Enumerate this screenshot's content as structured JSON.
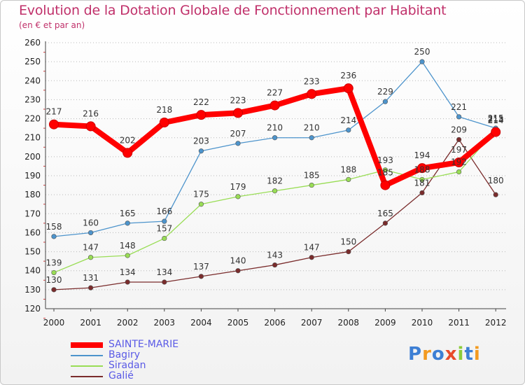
{
  "chart_data": {
    "type": "line",
    "title": "Evolution de la Dotation Globale de Fonctionnement par Habitant",
    "subtitle": "(en € et par an)",
    "xlabel": "",
    "ylabel": "",
    "categories": [
      "2000",
      "2001",
      "2002",
      "2003",
      "2004",
      "2005",
      "2006",
      "2007",
      "2008",
      "2009",
      "2010",
      "2011",
      "2012"
    ],
    "ylim": [
      120,
      260
    ],
    "yticks": [
      120,
      130,
      140,
      150,
      160,
      170,
      180,
      190,
      200,
      210,
      220,
      230,
      240,
      250,
      260
    ],
    "grid": "horizontal dotted",
    "legend_position": "bottom-left",
    "series": [
      {
        "name": "SAINTE-MARIE",
        "color": "#ff0000",
        "values": [
          217,
          216,
          202,
          218,
          222,
          223,
          227,
          233,
          236,
          185,
          194,
          197,
          213
        ]
      },
      {
        "name": "Bagiry",
        "color": "#4d94cc",
        "values": [
          158,
          160,
          165,
          166,
          203,
          207,
          210,
          210,
          214,
          229,
          250,
          221,
          215
        ]
      },
      {
        "name": "Siradan",
        "color": "#99dd55",
        "values": [
          139,
          147,
          148,
          157,
          175,
          179,
          182,
          185,
          188,
          193,
          188,
          192,
          214
        ]
      },
      {
        "name": "Galié",
        "color": "#7a2c2c",
        "values": [
          130,
          131,
          134,
          134,
          137,
          140,
          143,
          147,
          150,
          165,
          181,
          209,
          180
        ]
      }
    ]
  },
  "logo": {
    "text": "Proxiti",
    "colors": [
      "#3d7fd4",
      "#f39a1f",
      "#3d7fd4",
      "#e84a2a",
      "#8ccc3a",
      "#3d7fd4",
      "#f39a1f"
    ]
  }
}
